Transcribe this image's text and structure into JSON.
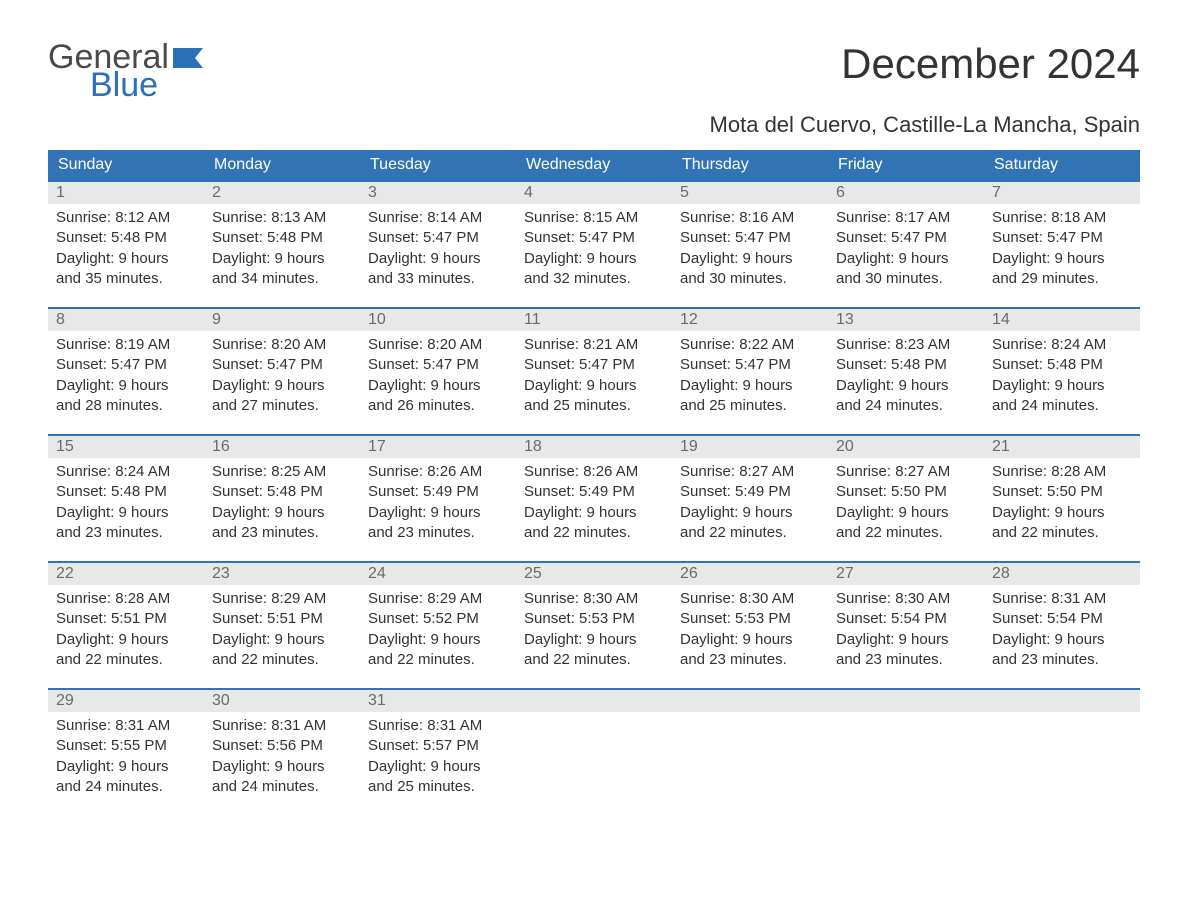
{
  "brand": {
    "top": "General",
    "bottom": "Blue",
    "top_color": "#4a4a4a",
    "bottom_color": "#2a71b8"
  },
  "title": "December 2024",
  "location": "Mota del Cuervo, Castille-La Mancha, Spain",
  "colors": {
    "header_bg": "#3173b5",
    "header_text": "#ffffff",
    "daynum_bg": "#e8e8e8",
    "daynum_text": "#6a6a6a",
    "body_text": "#333333",
    "week_border": "#3173b5",
    "page_bg": "#ffffff"
  },
  "typography": {
    "title_fontsize": 42,
    "location_fontsize": 22,
    "header_fontsize": 16,
    "cell_fontsize": 15
  },
  "day_headers": [
    "Sunday",
    "Monday",
    "Tuesday",
    "Wednesday",
    "Thursday",
    "Friday",
    "Saturday"
  ],
  "weeks": [
    [
      {
        "n": "1",
        "sr": "Sunrise: 8:12 AM",
        "ss": "Sunset: 5:48 PM",
        "d1": "Daylight: 9 hours",
        "d2": "and 35 minutes."
      },
      {
        "n": "2",
        "sr": "Sunrise: 8:13 AM",
        "ss": "Sunset: 5:48 PM",
        "d1": "Daylight: 9 hours",
        "d2": "and 34 minutes."
      },
      {
        "n": "3",
        "sr": "Sunrise: 8:14 AM",
        "ss": "Sunset: 5:47 PM",
        "d1": "Daylight: 9 hours",
        "d2": "and 33 minutes."
      },
      {
        "n": "4",
        "sr": "Sunrise: 8:15 AM",
        "ss": "Sunset: 5:47 PM",
        "d1": "Daylight: 9 hours",
        "d2": "and 32 minutes."
      },
      {
        "n": "5",
        "sr": "Sunrise: 8:16 AM",
        "ss": "Sunset: 5:47 PM",
        "d1": "Daylight: 9 hours",
        "d2": "and 30 minutes."
      },
      {
        "n": "6",
        "sr": "Sunrise: 8:17 AM",
        "ss": "Sunset: 5:47 PM",
        "d1": "Daylight: 9 hours",
        "d2": "and 30 minutes."
      },
      {
        "n": "7",
        "sr": "Sunrise: 8:18 AM",
        "ss": "Sunset: 5:47 PM",
        "d1": "Daylight: 9 hours",
        "d2": "and 29 minutes."
      }
    ],
    [
      {
        "n": "8",
        "sr": "Sunrise: 8:19 AM",
        "ss": "Sunset: 5:47 PM",
        "d1": "Daylight: 9 hours",
        "d2": "and 28 minutes."
      },
      {
        "n": "9",
        "sr": "Sunrise: 8:20 AM",
        "ss": "Sunset: 5:47 PM",
        "d1": "Daylight: 9 hours",
        "d2": "and 27 minutes."
      },
      {
        "n": "10",
        "sr": "Sunrise: 8:20 AM",
        "ss": "Sunset: 5:47 PM",
        "d1": "Daylight: 9 hours",
        "d2": "and 26 minutes."
      },
      {
        "n": "11",
        "sr": "Sunrise: 8:21 AM",
        "ss": "Sunset: 5:47 PM",
        "d1": "Daylight: 9 hours",
        "d2": "and 25 minutes."
      },
      {
        "n": "12",
        "sr": "Sunrise: 8:22 AM",
        "ss": "Sunset: 5:47 PM",
        "d1": "Daylight: 9 hours",
        "d2": "and 25 minutes."
      },
      {
        "n": "13",
        "sr": "Sunrise: 8:23 AM",
        "ss": "Sunset: 5:48 PM",
        "d1": "Daylight: 9 hours",
        "d2": "and 24 minutes."
      },
      {
        "n": "14",
        "sr": "Sunrise: 8:24 AM",
        "ss": "Sunset: 5:48 PM",
        "d1": "Daylight: 9 hours",
        "d2": "and 24 minutes."
      }
    ],
    [
      {
        "n": "15",
        "sr": "Sunrise: 8:24 AM",
        "ss": "Sunset: 5:48 PM",
        "d1": "Daylight: 9 hours",
        "d2": "and 23 minutes."
      },
      {
        "n": "16",
        "sr": "Sunrise: 8:25 AM",
        "ss": "Sunset: 5:48 PM",
        "d1": "Daylight: 9 hours",
        "d2": "and 23 minutes."
      },
      {
        "n": "17",
        "sr": "Sunrise: 8:26 AM",
        "ss": "Sunset: 5:49 PM",
        "d1": "Daylight: 9 hours",
        "d2": "and 23 minutes."
      },
      {
        "n": "18",
        "sr": "Sunrise: 8:26 AM",
        "ss": "Sunset: 5:49 PM",
        "d1": "Daylight: 9 hours",
        "d2": "and 22 minutes."
      },
      {
        "n": "19",
        "sr": "Sunrise: 8:27 AM",
        "ss": "Sunset: 5:49 PM",
        "d1": "Daylight: 9 hours",
        "d2": "and 22 minutes."
      },
      {
        "n": "20",
        "sr": "Sunrise: 8:27 AM",
        "ss": "Sunset: 5:50 PM",
        "d1": "Daylight: 9 hours",
        "d2": "and 22 minutes."
      },
      {
        "n": "21",
        "sr": "Sunrise: 8:28 AM",
        "ss": "Sunset: 5:50 PM",
        "d1": "Daylight: 9 hours",
        "d2": "and 22 minutes."
      }
    ],
    [
      {
        "n": "22",
        "sr": "Sunrise: 8:28 AM",
        "ss": "Sunset: 5:51 PM",
        "d1": "Daylight: 9 hours",
        "d2": "and 22 minutes."
      },
      {
        "n": "23",
        "sr": "Sunrise: 8:29 AM",
        "ss": "Sunset: 5:51 PM",
        "d1": "Daylight: 9 hours",
        "d2": "and 22 minutes."
      },
      {
        "n": "24",
        "sr": "Sunrise: 8:29 AM",
        "ss": "Sunset: 5:52 PM",
        "d1": "Daylight: 9 hours",
        "d2": "and 22 minutes."
      },
      {
        "n": "25",
        "sr": "Sunrise: 8:30 AM",
        "ss": "Sunset: 5:53 PM",
        "d1": "Daylight: 9 hours",
        "d2": "and 22 minutes."
      },
      {
        "n": "26",
        "sr": "Sunrise: 8:30 AM",
        "ss": "Sunset: 5:53 PM",
        "d1": "Daylight: 9 hours",
        "d2": "and 23 minutes."
      },
      {
        "n": "27",
        "sr": "Sunrise: 8:30 AM",
        "ss": "Sunset: 5:54 PM",
        "d1": "Daylight: 9 hours",
        "d2": "and 23 minutes."
      },
      {
        "n": "28",
        "sr": "Sunrise: 8:31 AM",
        "ss": "Sunset: 5:54 PM",
        "d1": "Daylight: 9 hours",
        "d2": "and 23 minutes."
      }
    ],
    [
      {
        "n": "29",
        "sr": "Sunrise: 8:31 AM",
        "ss": "Sunset: 5:55 PM",
        "d1": "Daylight: 9 hours",
        "d2": "and 24 minutes."
      },
      {
        "n": "30",
        "sr": "Sunrise: 8:31 AM",
        "ss": "Sunset: 5:56 PM",
        "d1": "Daylight: 9 hours",
        "d2": "and 24 minutes."
      },
      {
        "n": "31",
        "sr": "Sunrise: 8:31 AM",
        "ss": "Sunset: 5:57 PM",
        "d1": "Daylight: 9 hours",
        "d2": "and 25 minutes."
      },
      {
        "empty": true
      },
      {
        "empty": true
      },
      {
        "empty": true
      },
      {
        "empty": true
      }
    ]
  ]
}
